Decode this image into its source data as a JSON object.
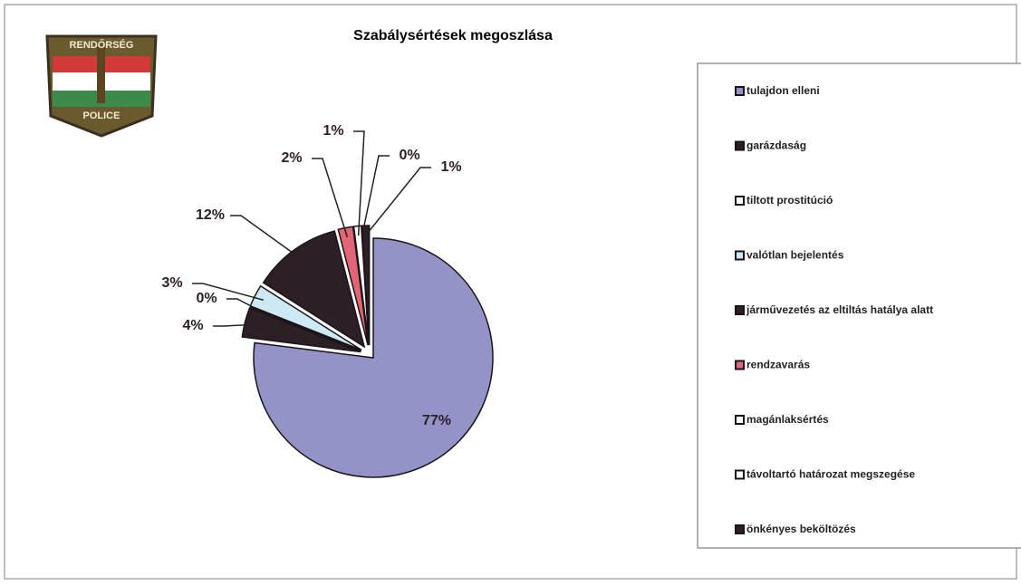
{
  "chart_data": {
    "type": "pie",
    "title": "Szabálysértések megoszlása",
    "categories": [
      "tulajdon elleni",
      "garázdaság",
      "tiltott prostitúció",
      "valótlan bejelentés",
      "járművezetés az eltiltás hatálya alatt",
      "rendzavarás",
      "magánlaksértés",
      "távoltartó határozat megszegése",
      "önkényes beköltözés"
    ],
    "values": [
      77,
      4,
      0,
      3,
      12,
      2,
      1,
      0,
      1
    ],
    "value_labels": [
      "77%",
      "4%",
      "0%",
      "3%",
      "12%",
      "2%",
      "1%",
      "0%",
      "1%"
    ],
    "colors": [
      "#9393c8",
      "#2c1f27",
      "#ffffff",
      "#cde9f6",
      "#2c1f27",
      "#e26575",
      "#ffffff",
      "#ffffff",
      "#2c1f27"
    ],
    "legend": "right"
  },
  "logo": {
    "top": "RENDŐRSÉG",
    "bottom": "POLICE"
  }
}
